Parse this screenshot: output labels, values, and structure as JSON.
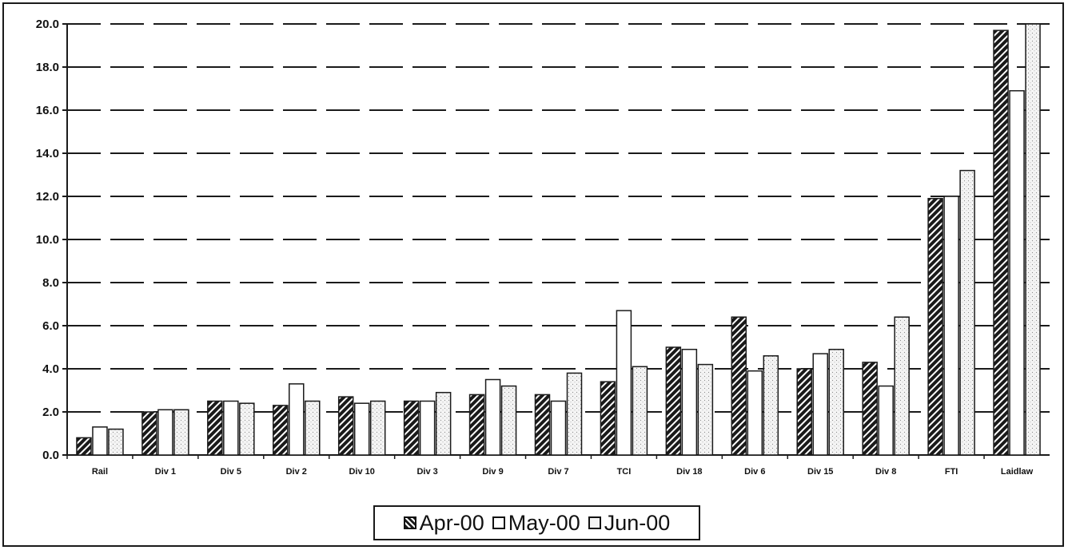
{
  "chart_data": {
    "type": "bar",
    "categories": [
      "Rail",
      "Div 1",
      "Div 5",
      "Div 2",
      "Div 10",
      "Div 3",
      "Div 9",
      "Div 7",
      "TCI",
      "Div 18",
      "Div 6",
      "Div 15",
      "Div 8",
      "FTI",
      "Laidlaw"
    ],
    "series": [
      {
        "name": "Apr-00",
        "pattern": "hatched",
        "color": "#1a1a1a",
        "values": [
          0.8,
          2.0,
          2.5,
          2.3,
          2.7,
          2.5,
          2.8,
          2.8,
          3.4,
          5.0,
          6.4,
          4.0,
          4.3,
          11.9,
          19.7
        ]
      },
      {
        "name": "May-00",
        "pattern": "white",
        "color": "#ffffff",
        "values": [
          1.3,
          2.1,
          2.5,
          3.3,
          2.4,
          2.5,
          3.5,
          2.5,
          6.7,
          4.9,
          3.9,
          4.7,
          3.2,
          12.0,
          16.9
        ]
      },
      {
        "name": "Jun-00",
        "pattern": "dotted",
        "color": "#f2f2f2",
        "values": [
          1.2,
          2.1,
          2.4,
          2.5,
          2.5,
          2.9,
          3.2,
          3.8,
          4.1,
          4.2,
          4.6,
          4.9,
          6.4,
          13.2,
          20.0
        ]
      }
    ],
    "ylim": [
      0,
      20
    ],
    "yticks": [
      "0.0",
      "2.0",
      "4.0",
      "6.0",
      "8.0",
      "10.0",
      "12.0",
      "14.0",
      "16.0",
      "18.0",
      "20.0"
    ],
    "grid": true,
    "legend_position": "bottom"
  },
  "legend": {
    "items": [
      {
        "label": "Apr-00"
      },
      {
        "label": "May-00"
      },
      {
        "label": "Jun-00"
      }
    ]
  }
}
